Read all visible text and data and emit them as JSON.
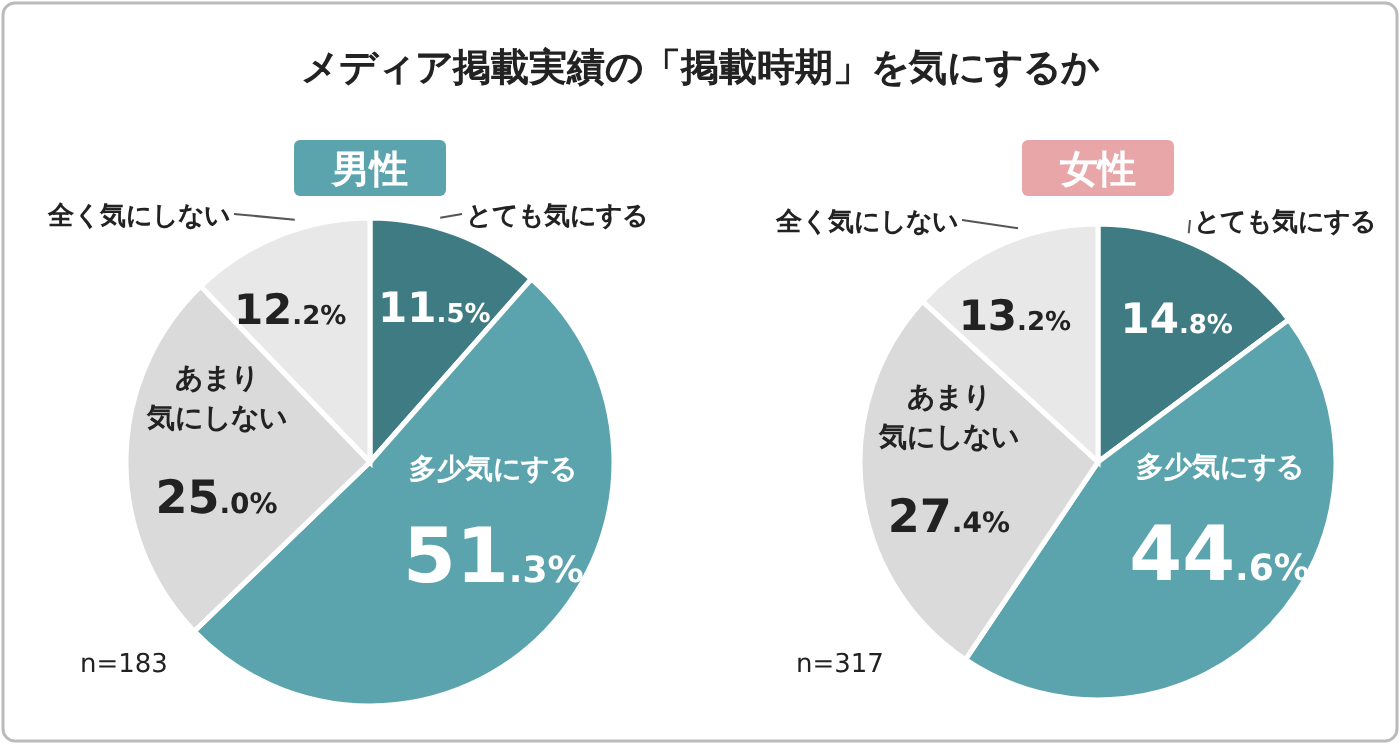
{
  "chart_data": [
    {
      "type": "pie",
      "title": "メディア掲載実績の「掲載時期」を気にするか",
      "subtitle": "男性",
      "categories": [
        "とても気にする",
        "多少気にする",
        "あまり気にしない",
        "全く気にしない"
      ],
      "values": [
        11.5,
        51.3,
        25.0,
        12.2
      ],
      "value_labels": [
        "11.5%",
        "51.3%",
        "25.0%",
        "12.2%"
      ],
      "colors": [
        "#3f7b83",
        "#5ba4ae",
        "#dadada",
        "#e8e8e8"
      ],
      "annotations": [
        "n=183"
      ]
    },
    {
      "type": "pie",
      "subtitle": "女性",
      "categories": [
        "とても気にする",
        "多少気にする",
        "あまり気にしない",
        "全く気にしない"
      ],
      "values": [
        14.8,
        44.6,
        27.4,
        13.2
      ],
      "value_labels": [
        "14.8%",
        "44.6%",
        "27.4%",
        "13.2%"
      ],
      "colors": [
        "#3f7b83",
        "#5ba4ae",
        "#dadada",
        "#e8e8e8"
      ],
      "annotations": [
        "n=317"
      ]
    }
  ]
}
